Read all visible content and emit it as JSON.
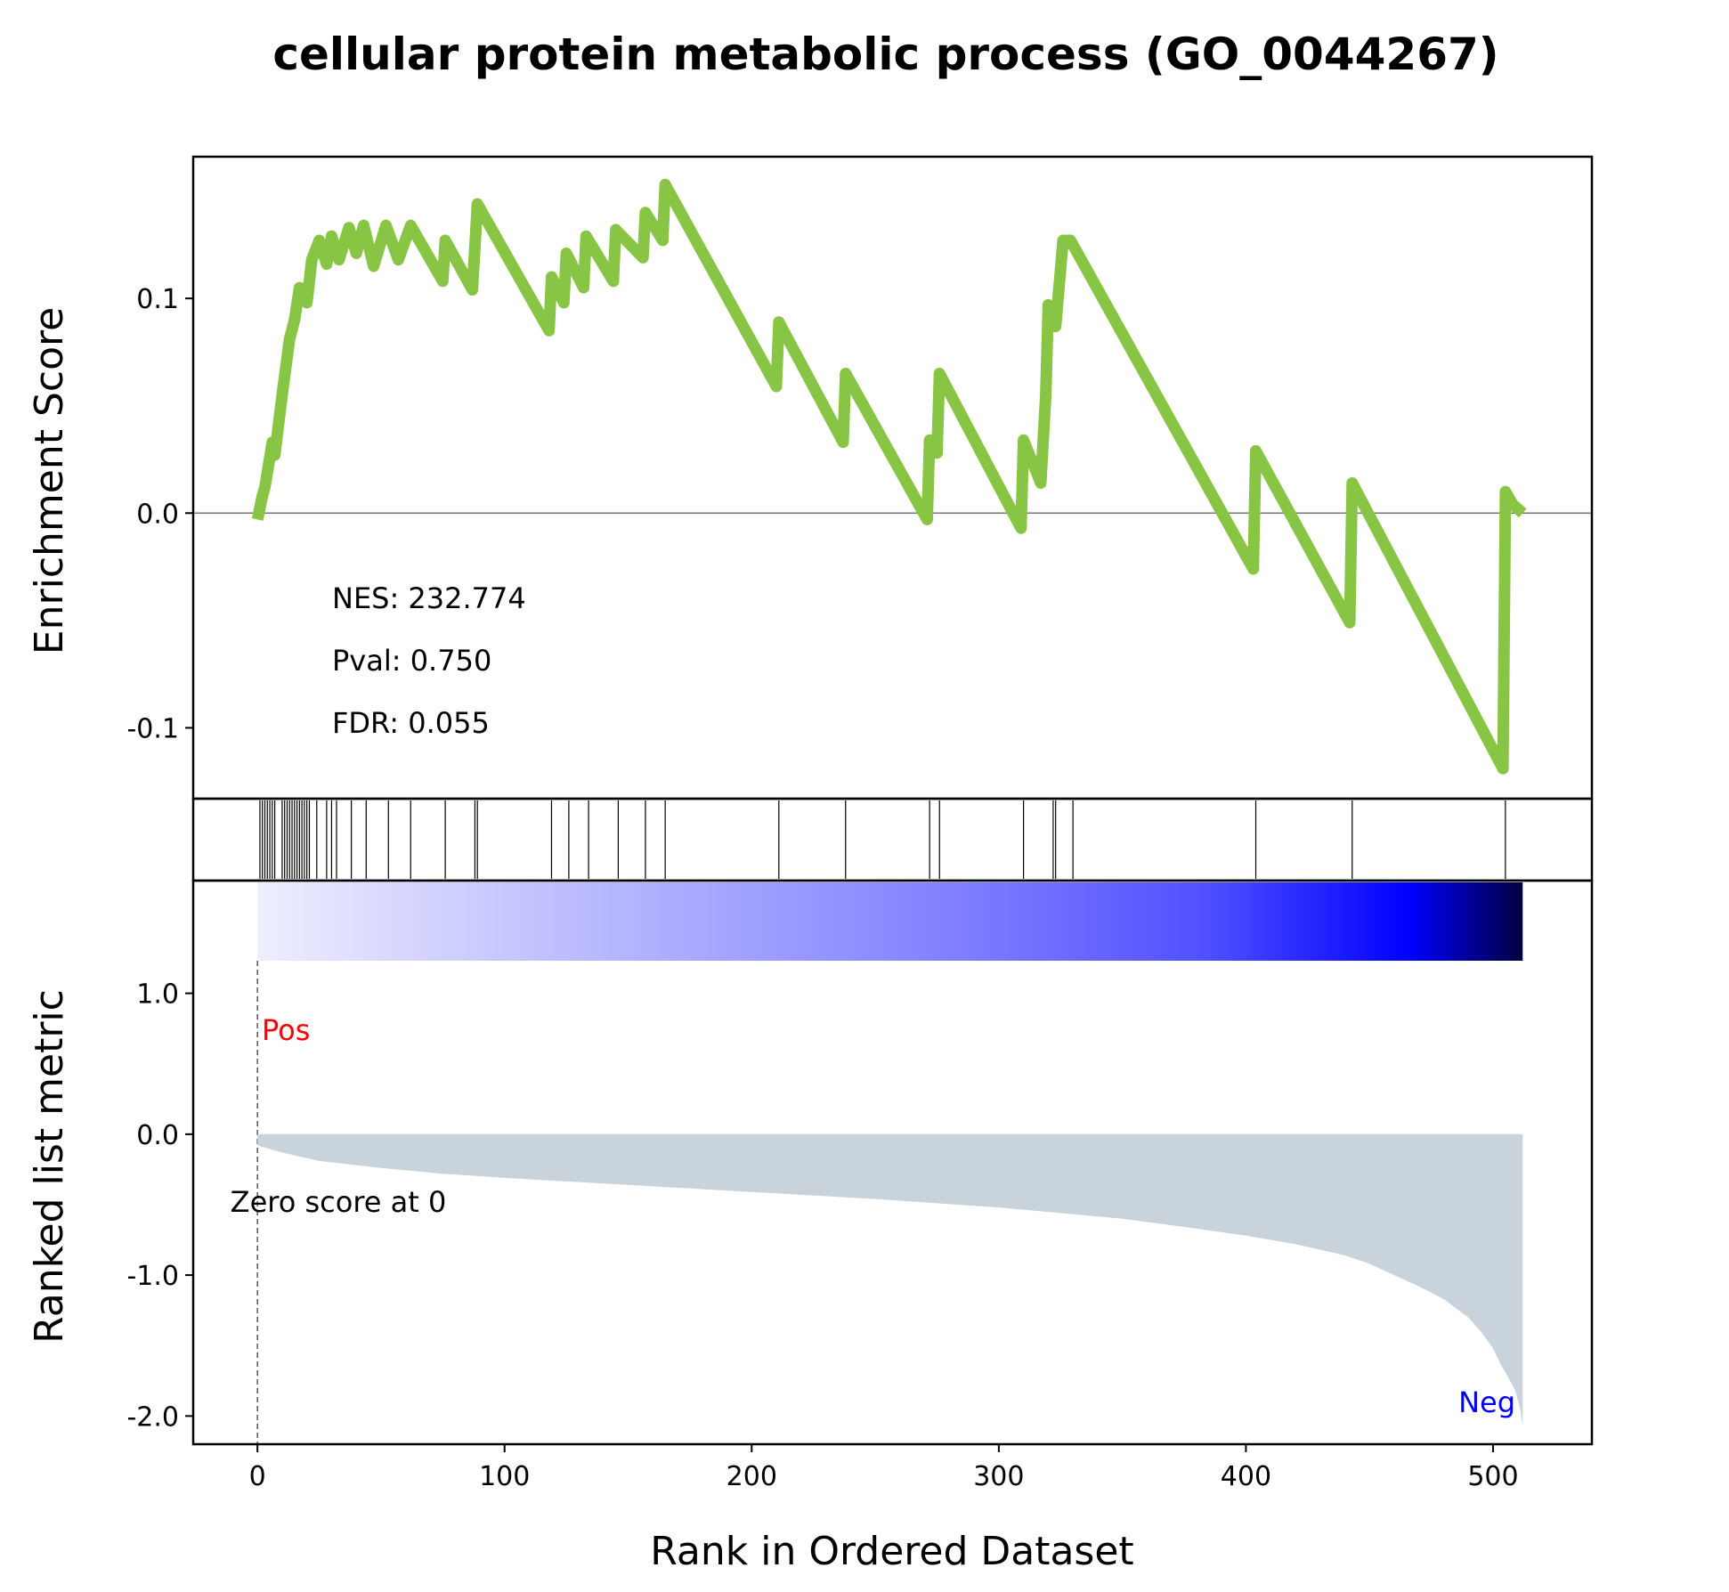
{
  "chart_data": {
    "type": "line",
    "title": "cellular protein metabolic process (GO_0044267)",
    "xlabel": "Rank in Ordered Dataset",
    "x_ticks": [
      "0",
      "100",
      "200",
      "300",
      "400",
      "500"
    ],
    "xlim": [
      -26,
      540
    ],
    "es_panel": {
      "ylabel": "Enrichment Score",
      "y_ticks": [
        "0.1",
        "0.0",
        "-0.1"
      ],
      "ylim": [
        -0.133,
        0.166
      ],
      "line_color": "#88C544",
      "stats": {
        "nes": "NES: 232.774",
        "pval": "Pval: 0.750",
        "fdr": "FDR: 0.055"
      },
      "x": [
        0,
        2,
        3,
        6,
        7,
        10,
        13,
        15,
        17,
        20,
        22,
        25,
        28,
        30,
        33,
        37,
        40,
        43,
        47,
        52,
        57,
        62,
        75,
        76,
        87,
        88,
        89,
        118,
        119,
        124,
        125,
        132,
        133,
        144,
        145,
        156,
        157,
        164,
        165,
        210,
        211,
        237,
        238,
        271,
        272,
        275,
        276,
        309,
        310,
        317,
        319,
        320,
        322,
        323,
        326,
        327,
        329,
        403,
        404,
        442,
        443,
        504,
        505,
        508,
        512
      ],
      "y": [
        -0.003,
        0.008,
        0.012,
        0.033,
        0.027,
        0.055,
        0.081,
        0.09,
        0.105,
        0.098,
        0.118,
        0.127,
        0.116,
        0.129,
        0.118,
        0.133,
        0.121,
        0.134,
        0.115,
        0.134,
        0.118,
        0.134,
        0.108,
        0.127,
        0.104,
        0.124,
        0.144,
        0.085,
        0.11,
        0.098,
        0.121,
        0.105,
        0.129,
        0.108,
        0.132,
        0.119,
        0.14,
        0.127,
        0.153,
        0.059,
        0.089,
        0.033,
        0.065,
        -0.003,
        0.034,
        0.028,
        0.065,
        -0.007,
        0.034,
        0.014,
        0.055,
        0.097,
        0.087,
        0.087,
        0.127,
        0.127,
        0.127,
        -0.026,
        0.029,
        -0.051,
        0.014,
        -0.119,
        0.01,
        0.004,
        0.0
      ]
    },
    "hits_panel": {
      "x": [
        1,
        2,
        3,
        4,
        5,
        6,
        7,
        10,
        11,
        12,
        13,
        14,
        15,
        16,
        17,
        18,
        19,
        20,
        21,
        24,
        28,
        30,
        32,
        38,
        44,
        53,
        62,
        76,
        88,
        89,
        119,
        126,
        134,
        146,
        157,
        165,
        211,
        238,
        272,
        276,
        310,
        322,
        323,
        330,
        404,
        443,
        505
      ]
    },
    "rank_panel": {
      "ylabel": "Ranked list metric",
      "y_ticks": [
        "1.0",
        "0.0",
        "-1.0",
        "-2.0"
      ],
      "ylim": [
        -2.2,
        1.8
      ],
      "fill_color": "#C9D3DB",
      "pos_label": "Pos",
      "neg_label": "Neg",
      "zero_label": "Zero score at 0",
      "x": [
        0,
        10,
        25,
        50,
        75,
        100,
        150,
        200,
        250,
        300,
        350,
        380,
        400,
        420,
        440,
        450,
        460,
        470,
        480,
        490,
        495,
        500,
        503,
        506,
        509,
        511,
        512
      ],
      "y": [
        -0.08,
        -0.13,
        -0.19,
        -0.24,
        -0.28,
        -0.31,
        -0.36,
        -0.41,
        -0.46,
        -0.52,
        -0.6,
        -0.67,
        -0.72,
        -0.78,
        -0.86,
        -0.92,
        -1.0,
        -1.08,
        -1.17,
        -1.3,
        -1.4,
        -1.52,
        -1.63,
        -1.72,
        -1.82,
        -1.95,
        -2.08
      ]
    }
  }
}
